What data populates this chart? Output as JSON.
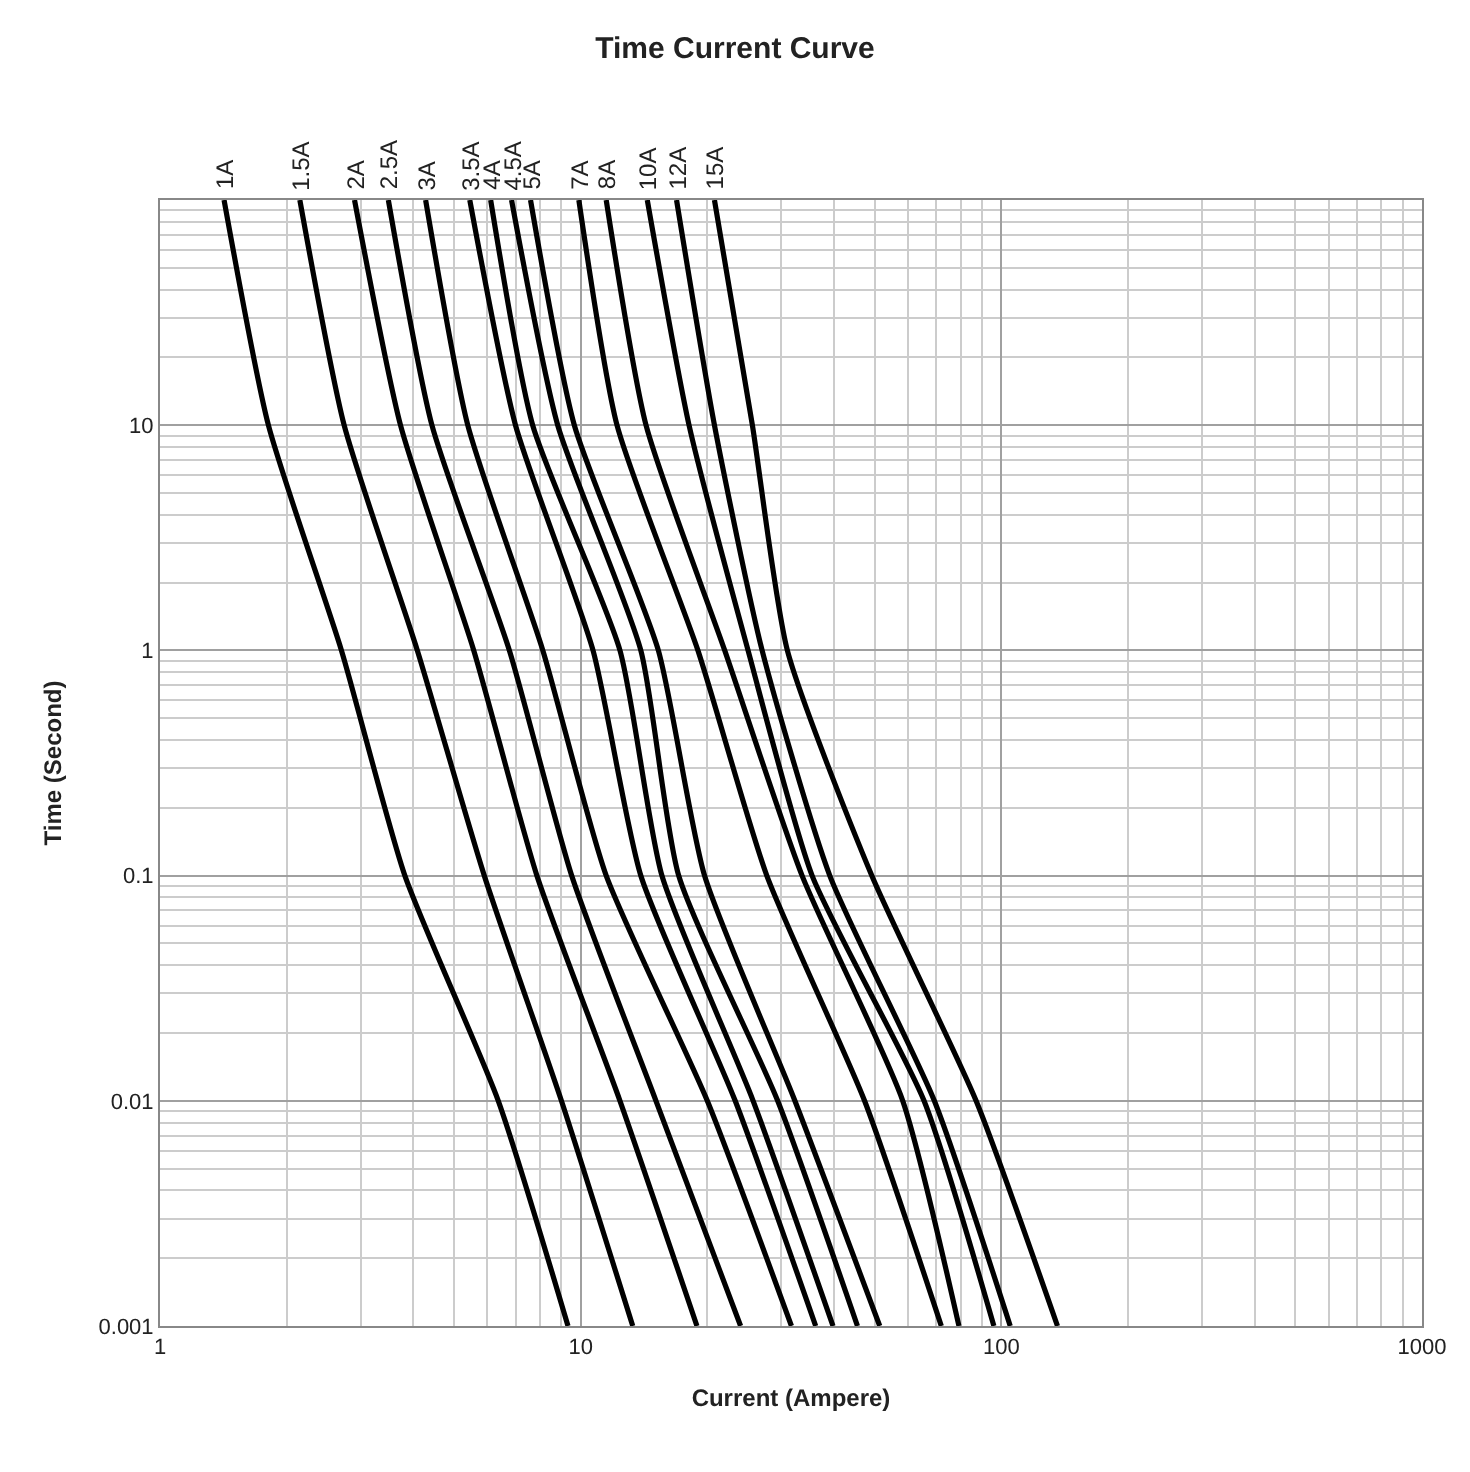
{
  "chart_data": {
    "type": "line",
    "title": "Time Current Curve",
    "xlabel": "Current (Ampere)",
    "ylabel": "Time (Second)",
    "log": "xy",
    "xlim": [
      1,
      1000
    ],
    "ylim": [
      0.001,
      100
    ],
    "xticks": [
      1,
      10,
      100,
      1000
    ],
    "yticks": [
      0.001,
      0.01,
      0.1,
      1,
      10
    ],
    "grid": true,
    "legend": false,
    "marker": "none",
    "line_style": "solid",
    "series": [
      {
        "name": "1A",
        "color": "#000000",
        "x": [
          1.42,
          1.81,
          2.7,
          3.82,
          6.37,
          9.33
        ],
        "values": [
          100,
          10,
          1,
          0.1,
          0.01,
          0.001
        ]
      },
      {
        "name": "1.5A",
        "color": "#000000",
        "x": [
          2.15,
          2.74,
          4.09,
          5.9,
          9.0,
          13.3
        ],
        "values": [
          100,
          10,
          1,
          0.1,
          0.01,
          0.001
        ]
      },
      {
        "name": "2A",
        "color": "#000000",
        "x": [
          2.9,
          3.73,
          5.57,
          7.87,
          12.4,
          18.9
        ],
        "values": [
          100,
          10,
          1,
          0.1,
          0.01,
          0.001
        ]
      },
      {
        "name": "2.5A",
        "color": "#000000",
        "x": [
          3.49,
          4.43,
          6.77,
          9.52,
          15.1,
          24.0
        ],
        "values": [
          100,
          10,
          1,
          0.1,
          0.01,
          0.001
        ]
      },
      {
        "name": "3A",
        "color": "#000000",
        "x": [
          4.28,
          5.39,
          8.13,
          11.5,
          20.0,
          31.7
        ],
        "values": [
          100,
          10,
          1,
          0.1,
          0.01,
          0.001
        ]
      },
      {
        "name": "3.5A",
        "color": "#000000",
        "x": [
          5.45,
          7.0,
          10.7,
          13.9,
          23.3,
          36.2
        ],
        "values": [
          100,
          10,
          1,
          0.1,
          0.01,
          0.001
        ]
      },
      {
        "name": "4A",
        "color": "#000000",
        "x": [
          6.11,
          7.69,
          12.4,
          15.6,
          25.7,
          39.8
        ],
        "values": [
          100,
          10,
          1,
          0.1,
          0.01,
          0.001
        ]
      },
      {
        "name": "4.5A",
        "color": "#000000",
        "x": [
          6.85,
          8.82,
          13.9,
          17.1,
          29.4,
          45.5
        ],
        "values": [
          100,
          10,
          1,
          0.1,
          0.01,
          0.001
        ]
      },
      {
        "name": "5A",
        "color": "#000000",
        "x": [
          7.6,
          9.66,
          15.3,
          19.7,
          32.3,
          51.4
        ],
        "values": [
          100,
          10,
          1,
          0.1,
          0.01,
          0.001
        ]
      },
      {
        "name": "7A",
        "color": "#000000",
        "x": [
          9.9,
          12.2,
          19.0,
          27.7,
          47.3,
          72
        ],
        "values": [
          100,
          10,
          1,
          0.1,
          0.01,
          0.001
        ]
      },
      {
        "name": "8A",
        "color": "#000000",
        "x": [
          11.5,
          14.3,
          22.0,
          33.6,
          58.3,
          79.3
        ],
        "values": [
          100,
          10,
          1,
          0.1,
          0.01,
          0.001
        ]
      },
      {
        "name": "10A",
        "color": "#000000",
        "x": [
          14.4,
          18.1,
          25,
          35.5,
          65.5,
          96
        ],
        "values": [
          100,
          10,
          1,
          0.1,
          0.01,
          0.001
        ]
      },
      {
        "name": "12A",
        "color": "#000000",
        "x": [
          16.9,
          20.8,
          27,
          39.1,
          69.3,
          105
        ],
        "values": [
          100,
          10,
          1,
          0.1,
          0.01,
          0.001
        ]
      },
      {
        "name": "15A",
        "color": "#000000",
        "x": [
          20.8,
          25.6,
          31,
          49.2,
          87.1,
          136
        ],
        "values": [
          100,
          10,
          1,
          0.1,
          0.01,
          0.001
        ]
      }
    ]
  }
}
